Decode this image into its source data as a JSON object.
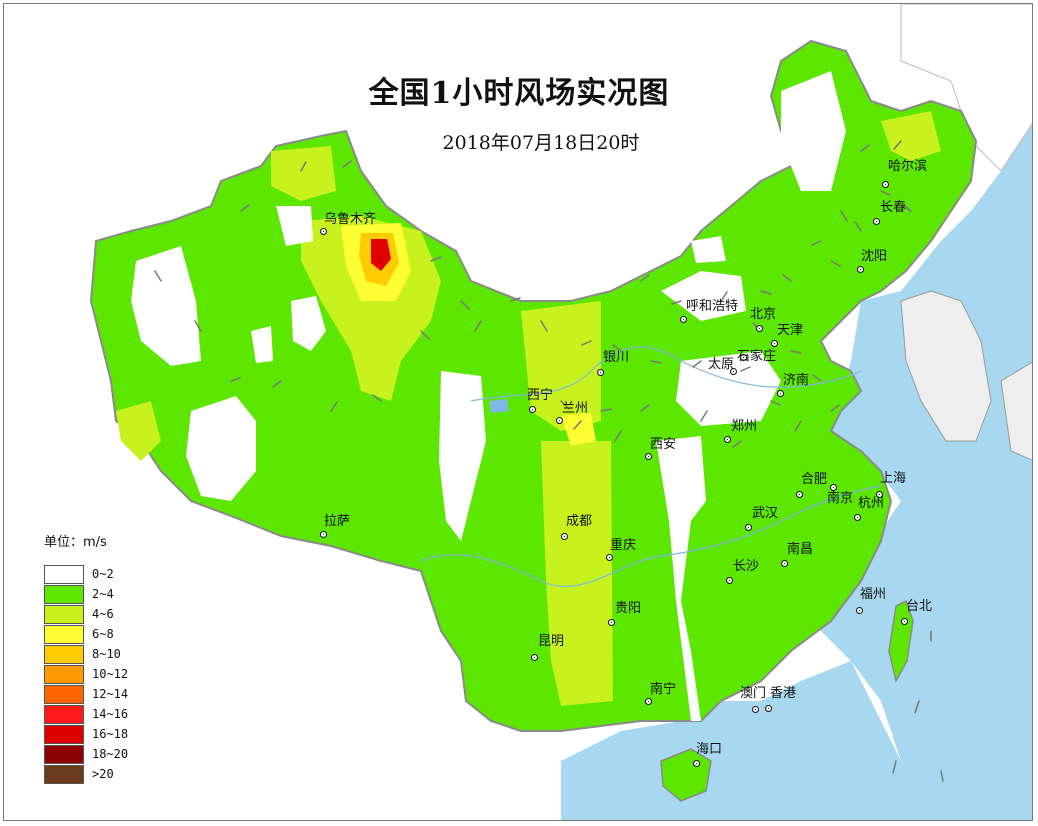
{
  "title": "全国1小时风场实况图",
  "subtitle": "2018年07月18日20时",
  "legend": {
    "title": "单位：m/s",
    "items": [
      {
        "label": "0~2",
        "color": "#ffffff"
      },
      {
        "label": "2~4",
        "color": "#5ce600"
      },
      {
        "label": "4~6",
        "color": "#c8f21e"
      },
      {
        "label": "6~8",
        "color": "#ffff33"
      },
      {
        "label": "8~10",
        "color": "#ffcc00"
      },
      {
        "label": "10~12",
        "color": "#ff9900"
      },
      {
        "label": "12~14",
        "color": "#ff6600"
      },
      {
        "label": "14~16",
        "color": "#ff1a1a"
      },
      {
        "label": "16~18",
        "color": "#e00000"
      },
      {
        "label": "18~20",
        "color": "#8b0000"
      },
      {
        "label": ">20",
        "color": "#6b3a1f"
      }
    ]
  },
  "cities": [
    {
      "name": "乌鲁木齐"
    },
    {
      "name": "哈尔滨"
    },
    {
      "name": "长春"
    },
    {
      "name": "沈阳"
    },
    {
      "name": "呼和浩特"
    },
    {
      "name": "北京"
    },
    {
      "name": "天津"
    },
    {
      "name": "银川"
    },
    {
      "name": "太原"
    },
    {
      "name": "石家庄"
    },
    {
      "name": "济南"
    },
    {
      "name": "西宁"
    },
    {
      "name": "兰州"
    },
    {
      "name": "郑州"
    },
    {
      "name": "西安"
    },
    {
      "name": "合肥"
    },
    {
      "name": "上海"
    },
    {
      "name": "南京"
    },
    {
      "name": "杭州"
    },
    {
      "name": "拉萨"
    },
    {
      "name": "成都"
    },
    {
      "name": "武汉"
    },
    {
      "name": "重庆"
    },
    {
      "name": "南昌"
    },
    {
      "name": "长沙"
    },
    {
      "name": "福州"
    },
    {
      "name": "台北"
    },
    {
      "name": "贵阳"
    },
    {
      "name": "昆明"
    },
    {
      "name": "南宁"
    },
    {
      "name": "澳门"
    },
    {
      "name": "香港"
    },
    {
      "name": "海口"
    }
  ],
  "colors": {
    "sea": "#a8d8f0",
    "land_outside": "#e8e8e8",
    "calm": "#ffffff",
    "base": "#5ce600"
  }
}
